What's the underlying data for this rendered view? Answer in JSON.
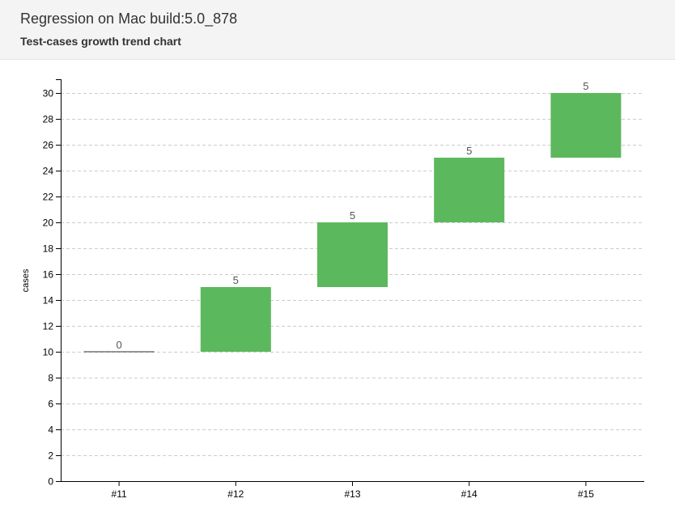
{
  "header": {
    "title": "Regression on Mac build:5.0_878",
    "subtitle": "Test-cases growth trend chart"
  },
  "colors": {
    "bar": "#5cb85c",
    "axis": "#000000",
    "grid": "#cccccc",
    "label": "#555555"
  },
  "chart_data": {
    "type": "bar",
    "subtype": "waterfall",
    "categories": [
      "#11",
      "#12",
      "#13",
      "#14",
      "#15"
    ],
    "base": [
      10,
      10,
      15,
      20,
      25
    ],
    "values": [
      0,
      5,
      5,
      5,
      5
    ],
    "data_labels": [
      "0",
      "5",
      "5",
      "5",
      "5"
    ],
    "ylabel": "cases",
    "ylim": [
      0,
      31
    ],
    "yticks": [
      0,
      2,
      4,
      6,
      8,
      10,
      12,
      14,
      16,
      18,
      20,
      22,
      24,
      26,
      28,
      30
    ],
    "grid": true
  }
}
